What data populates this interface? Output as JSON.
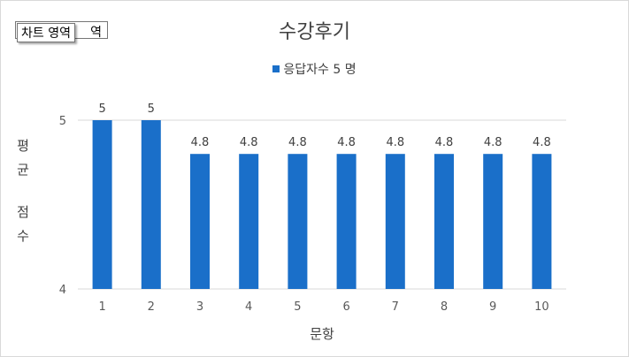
{
  "tooltip": {
    "back_text": "역",
    "front_text": "차트 영역"
  },
  "chart_data": {
    "type": "bar",
    "title": "수강후기",
    "xlabel": "문항",
    "ylabel": "평균 점수",
    "categories": [
      "1",
      "2",
      "3",
      "4",
      "5",
      "6",
      "7",
      "8",
      "9",
      "10"
    ],
    "series": [
      {
        "name": "응답자수 5 명",
        "values": [
          5,
          5,
          4.8,
          4.8,
          4.8,
          4.8,
          4.8,
          4.8,
          4.8,
          4.8
        ],
        "data_labels": [
          "5",
          "5",
          "4.8",
          "4.8",
          "4.8",
          "4.8",
          "4.8",
          "4.8",
          "4.8",
          "4.8"
        ]
      }
    ],
    "ylim": [
      4,
      5
    ],
    "yticks": [
      "4",
      "5"
    ],
    "grid": true,
    "legend_position": "top",
    "colors": {
      "bar": "#1a6fc9",
      "grid": "#d9d9d9",
      "text": "#595959"
    }
  }
}
